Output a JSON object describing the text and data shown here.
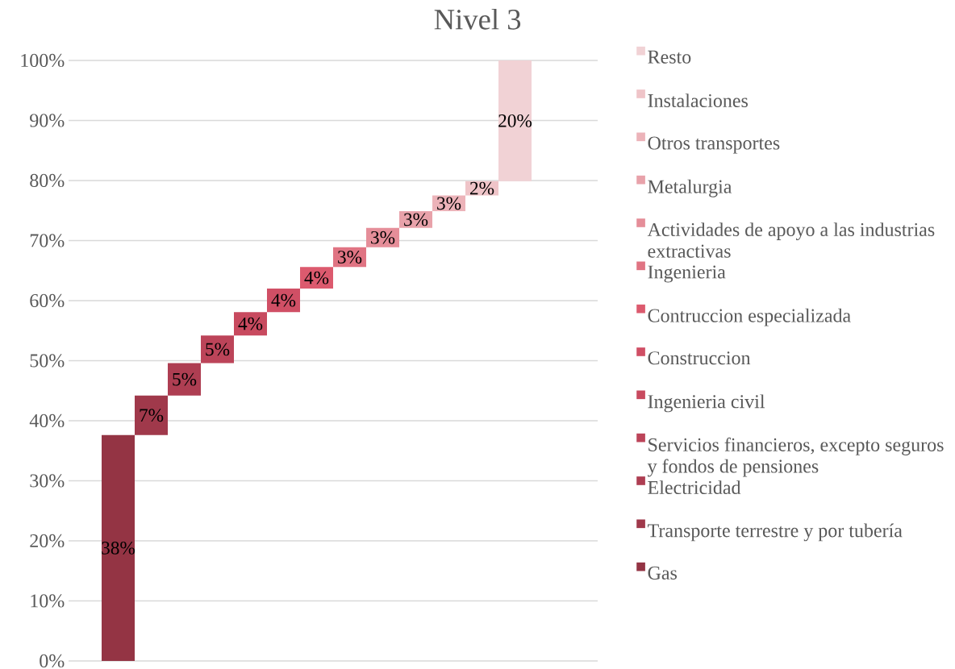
{
  "chart_data": {
    "type": "bar",
    "title": "Nivel 3",
    "categories": [
      null,
      null,
      null,
      null,
      null,
      null,
      null,
      null,
      null,
      null,
      null,
      null,
      null,
      null,
      null,
      null
    ],
    "series": [
      {
        "name": "Gas",
        "color": "#943444",
        "values": [
          null,
          37.6,
          null,
          null,
          null,
          null,
          null,
          null,
          null,
          null,
          null,
          null,
          null,
          null,
          null,
          null
        ],
        "base": [
          null,
          0,
          null,
          null,
          null,
          null,
          null,
          null,
          null,
          null,
          null,
          null,
          null,
          null,
          null,
          null
        ],
        "value_labels": [
          null,
          "38%",
          null,
          null,
          null,
          null,
          null,
          null,
          null,
          null,
          null,
          null,
          null,
          null,
          null,
          null
        ]
      },
      {
        "name": "Transporte terrestre y por tubería",
        "color": "#A0394B",
        "values": [
          null,
          null,
          6.6,
          null,
          null,
          null,
          null,
          null,
          null,
          null,
          null,
          null,
          null,
          null,
          null,
          null
        ],
        "base": [
          null,
          null,
          37.6,
          null,
          null,
          null,
          null,
          null,
          null,
          null,
          null,
          null,
          null,
          null,
          null,
          null
        ],
        "value_labels": [
          null,
          null,
          "7%",
          null,
          null,
          null,
          null,
          null,
          null,
          null,
          null,
          null,
          null,
          null,
          null,
          null
        ]
      },
      {
        "name": "Electricidad",
        "color": "#AE3E52",
        "values": [
          null,
          null,
          null,
          5.4,
          null,
          null,
          null,
          null,
          null,
          null,
          null,
          null,
          null,
          null,
          null,
          null
        ],
        "base": [
          null,
          null,
          null,
          44.2,
          null,
          null,
          null,
          null,
          null,
          null,
          null,
          null,
          null,
          null,
          null,
          null
        ],
        "value_labels": [
          null,
          null,
          null,
          "5%",
          null,
          null,
          null,
          null,
          null,
          null,
          null,
          null,
          null,
          null,
          null,
          null
        ]
      },
      {
        "name": "Servicios financieros, excepto seguros y fondos de pensiones",
        "color": "#BC4459",
        "values": [
          null,
          null,
          null,
          null,
          4.6,
          null,
          null,
          null,
          null,
          null,
          null,
          null,
          null,
          null,
          null,
          null
        ],
        "base": [
          null,
          null,
          null,
          null,
          49.6,
          null,
          null,
          null,
          null,
          null,
          null,
          null,
          null,
          null,
          null,
          null
        ],
        "value_labels": [
          null,
          null,
          null,
          null,
          "5%",
          null,
          null,
          null,
          null,
          null,
          null,
          null,
          null,
          null,
          null,
          null
        ]
      },
      {
        "name": "Ingenieria civil",
        "color": "#C84A5F",
        "values": [
          null,
          null,
          null,
          null,
          null,
          3.9,
          null,
          null,
          null,
          null,
          null,
          null,
          null,
          null,
          null,
          null
        ],
        "base": [
          null,
          null,
          null,
          null,
          null,
          54.2,
          null,
          null,
          null,
          null,
          null,
          null,
          null,
          null,
          null,
          null
        ],
        "value_labels": [
          null,
          null,
          null,
          null,
          null,
          "4%",
          null,
          null,
          null,
          null,
          null,
          null,
          null,
          null,
          null,
          null
        ]
      },
      {
        "name": "Construccion",
        "color": "#D04F65",
        "values": [
          null,
          null,
          null,
          null,
          null,
          null,
          3.9,
          null,
          null,
          null,
          null,
          null,
          null,
          null,
          null,
          null
        ],
        "base": [
          null,
          null,
          null,
          null,
          null,
          null,
          58.1,
          null,
          null,
          null,
          null,
          null,
          null,
          null,
          null,
          null
        ],
        "value_labels": [
          null,
          null,
          null,
          null,
          null,
          null,
          "4%",
          null,
          null,
          null,
          null,
          null,
          null,
          null,
          null,
          null
        ]
      },
      {
        "name": "Contruccion especializada",
        "color": "#DC5A6E",
        "values": [
          null,
          null,
          null,
          null,
          null,
          null,
          null,
          3.6,
          null,
          null,
          null,
          null,
          null,
          null,
          null,
          null
        ],
        "base": [
          null,
          null,
          null,
          null,
          null,
          null,
          null,
          62.0,
          null,
          null,
          null,
          null,
          null,
          null,
          null,
          null
        ],
        "value_labels": [
          null,
          null,
          null,
          null,
          null,
          null,
          null,
          "4%",
          null,
          null,
          null,
          null,
          null,
          null,
          null,
          null
        ]
      },
      {
        "name": "Ingenieria",
        "color": "#E07483",
        "values": [
          null,
          null,
          null,
          null,
          null,
          null,
          null,
          null,
          3.3,
          null,
          null,
          null,
          null,
          null,
          null,
          null
        ],
        "base": [
          null,
          null,
          null,
          null,
          null,
          null,
          null,
          null,
          65.6,
          null,
          null,
          null,
          null,
          null,
          null,
          null
        ],
        "value_labels": [
          null,
          null,
          null,
          null,
          null,
          null,
          null,
          null,
          "3%",
          null,
          null,
          null,
          null,
          null,
          null,
          null
        ]
      },
      {
        "name": "Actividades de apoyo a las industrias extractivas",
        "color": "#E58E99",
        "values": [
          null,
          null,
          null,
          null,
          null,
          null,
          null,
          null,
          null,
          3.2,
          null,
          null,
          null,
          null,
          null,
          null
        ],
        "base": [
          null,
          null,
          null,
          null,
          null,
          null,
          null,
          null,
          null,
          68.9,
          null,
          null,
          null,
          null,
          null,
          null
        ],
        "value_labels": [
          null,
          null,
          null,
          null,
          null,
          null,
          null,
          null,
          null,
          "3%",
          null,
          null,
          null,
          null,
          null,
          null
        ]
      },
      {
        "name": "Metalurgia",
        "color": "#E8A2AA",
        "values": [
          null,
          null,
          null,
          null,
          null,
          null,
          null,
          null,
          null,
          null,
          2.8,
          null,
          null,
          null,
          null,
          null
        ],
        "base": [
          null,
          null,
          null,
          null,
          null,
          null,
          null,
          null,
          null,
          null,
          72.1,
          null,
          null,
          null,
          null,
          null
        ],
        "value_labels": [
          null,
          null,
          null,
          null,
          null,
          null,
          null,
          null,
          null,
          null,
          "3%",
          null,
          null,
          null,
          null,
          null
        ]
      },
      {
        "name": "Otros transportes",
        "color": "#ECB3B9",
        "values": [
          null,
          null,
          null,
          null,
          null,
          null,
          null,
          null,
          null,
          null,
          null,
          2.6,
          null,
          null,
          null,
          null
        ],
        "base": [
          null,
          null,
          null,
          null,
          null,
          null,
          null,
          null,
          null,
          null,
          null,
          74.9,
          null,
          null,
          null,
          null
        ],
        "value_labels": [
          null,
          null,
          null,
          null,
          null,
          null,
          null,
          null,
          null,
          null,
          null,
          "3%",
          null,
          null,
          null,
          null
        ]
      },
      {
        "name": "Instalaciones",
        "color": "#EFC4C8",
        "values": [
          null,
          null,
          null,
          null,
          null,
          null,
          null,
          null,
          null,
          null,
          null,
          null,
          2.4,
          null,
          null,
          null
        ],
        "base": [
          null,
          null,
          null,
          null,
          null,
          null,
          null,
          null,
          null,
          null,
          null,
          null,
          77.5,
          null,
          null,
          null
        ],
        "value_labels": [
          null,
          null,
          null,
          null,
          null,
          null,
          null,
          null,
          null,
          null,
          null,
          null,
          "2%",
          null,
          null,
          null
        ]
      },
      {
        "name": "Resto",
        "color": "#F1D2D5",
        "values": [
          null,
          null,
          null,
          null,
          null,
          null,
          null,
          null,
          null,
          null,
          null,
          null,
          null,
          20.1,
          null,
          null
        ],
        "base": [
          null,
          null,
          null,
          null,
          null,
          null,
          null,
          null,
          null,
          null,
          null,
          null,
          null,
          79.9,
          null,
          null
        ],
        "value_labels": [
          null,
          null,
          null,
          null,
          null,
          null,
          null,
          null,
          null,
          null,
          null,
          null,
          null,
          "20%",
          null,
          null
        ]
      }
    ],
    "ylim": [
      0,
      100
    ],
    "yticks": [
      {
        "value": 0,
        "label": "0%"
      },
      {
        "value": 10,
        "label": "10%"
      },
      {
        "value": 20,
        "label": "20%"
      },
      {
        "value": 30,
        "label": "30%"
      },
      {
        "value": 40,
        "label": "40%"
      },
      {
        "value": 50,
        "label": "50%"
      },
      {
        "value": 60,
        "label": "60%"
      },
      {
        "value": 70,
        "label": "70%"
      },
      {
        "value": 80,
        "label": "80%"
      },
      {
        "value": 90,
        "label": "90%"
      },
      {
        "value": 100,
        "label": "100%"
      }
    ],
    "grid": "y",
    "legend": "right"
  }
}
